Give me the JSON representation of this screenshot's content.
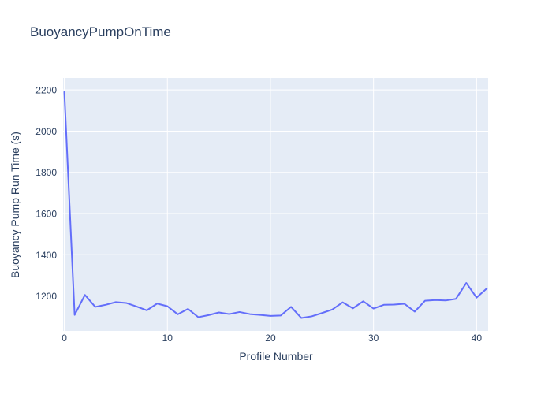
{
  "chart_data": {
    "type": "line",
    "title": "BuoyancyPumpOnTime",
    "xlabel": "Profile Number",
    "ylabel": "Buoyancy Pump Run Time (s)",
    "x": [
      0,
      1,
      2,
      3,
      4,
      5,
      6,
      7,
      8,
      9,
      10,
      11,
      12,
      13,
      14,
      15,
      16,
      17,
      18,
      19,
      20,
      21,
      22,
      23,
      24,
      25,
      26,
      27,
      28,
      29,
      30,
      31,
      32,
      33,
      34,
      35,
      36,
      37,
      38,
      39,
      40,
      41
    ],
    "y": [
      2190,
      1108,
      1205,
      1147,
      1157,
      1170,
      1166,
      1149,
      1130,
      1163,
      1150,
      1111,
      1137,
      1097,
      1107,
      1120,
      1112,
      1122,
      1112,
      1108,
      1103,
      1105,
      1147,
      1093,
      1101,
      1117,
      1134,
      1169,
      1140,
      1174,
      1139,
      1157,
      1158,
      1162,
      1124,
      1177,
      1180,
      1178,
      1186,
      1263,
      1192,
      1237
    ],
    "xticks": [
      0,
      10,
      20,
      30,
      40
    ],
    "yticks": [
      1200,
      1400,
      1600,
      1800,
      2000,
      2200
    ],
    "xlim": [
      -0.12,
      41.12
    ],
    "ylim": [
      1030,
      2258
    ],
    "grid": true,
    "legend": "none",
    "colors": {
      "line": "#636efa",
      "plot_background": "#e5ecf6",
      "grid": "#ffffff",
      "text": "#2a3f5f",
      "paper": "#ffffff"
    }
  }
}
